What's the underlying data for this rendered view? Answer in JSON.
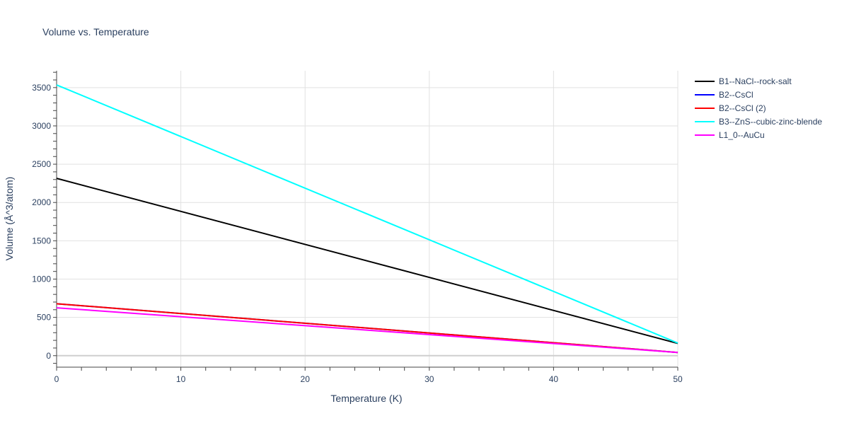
{
  "chart_data": {
    "type": "line",
    "title": "Volume vs. Temperature",
    "xlabel": "Temperature (K)",
    "ylabel": "Volume (Å^3/atom)",
    "xlim": [
      0,
      50
    ],
    "ylim": [
      -150,
      3720
    ],
    "x_ticks": [
      0,
      10,
      20,
      30,
      40,
      50
    ],
    "y_ticks": [
      0,
      500,
      1000,
      1500,
      2000,
      2500,
      3000,
      3500
    ],
    "grid": true,
    "legend_position": "top-right, outside plot",
    "series": [
      {
        "name": "B1--NaCl--rock-salt",
        "color": "#000000",
        "x": [
          0,
          50
        ],
        "y": [
          2315,
          160
        ]
      },
      {
        "name": "B2--CsCl",
        "color": "#0000ff",
        "x": [
          0,
          50
        ],
        "y": [
          678,
          42
        ]
      },
      {
        "name": "B2--CsCl (2)",
        "color": "#ff0000",
        "x": [
          0,
          50
        ],
        "y": [
          678,
          42
        ]
      },
      {
        "name": "B3--ZnS--cubic-zinc-blende",
        "color": "#00ffff",
        "x": [
          0,
          50
        ],
        "y": [
          3535,
          165
        ]
      },
      {
        "name": "L1_0--AuCu",
        "color": "#ff00ff",
        "x": [
          0,
          50
        ],
        "y": [
          625,
          42
        ]
      }
    ]
  }
}
